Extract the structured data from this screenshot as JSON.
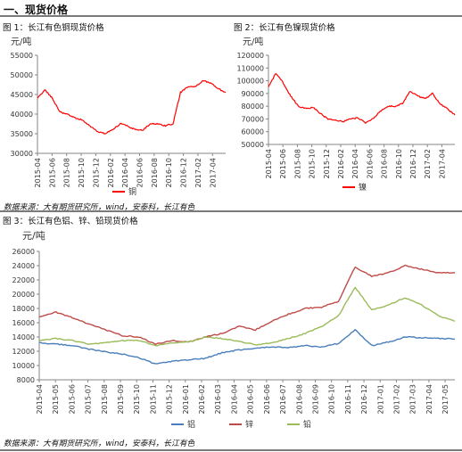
{
  "section_title": "一、现货价格",
  "figure1_title": "图 1：长江有色铜现货价格",
  "figure2_title": "图 2：长江有色镍现货价格",
  "figure3_title": "图 3：长江有色铝、锌、铅现货价格",
  "source1": "数据来源：大有期货研究所，wind，安泰科，长江有色",
  "source2": "数据来源：大有期货研究所，wind，安泰科，长江有色",
  "colors": {
    "copper": "#ff0000",
    "nickel": "#ff0000",
    "aluminum": "#4a7ebb",
    "zinc": "#be4b48",
    "lead": "#9bbb59",
    "axis": "#868686",
    "divider": "#7a7a7a"
  },
  "chart_data": [
    {
      "type": "line",
      "title": "",
      "ylabel": "元/吨",
      "ylim": [
        30000,
        55000
      ],
      "y_ticks": [
        "55000",
        "50000",
        "45000",
        "40000",
        "35000",
        "30000"
      ],
      "x_ticks": [
        "2015-04",
        "2015-06",
        "2015-08",
        "2015-10",
        "2015-12",
        "2016-02",
        "2016-04",
        "2016-06",
        "2016-08",
        "2016-10",
        "2016-12",
        "2017-02",
        "2017-04"
      ],
      "series": [
        {
          "name": "铜",
          "color": "#ff0000",
          "x": [
            "2015-04",
            "2015-05",
            "2015-06",
            "2015-07",
            "2015-08",
            "2015-09",
            "2015-10",
            "2015-11",
            "2015-12",
            "2016-01",
            "2016-02",
            "2016-03",
            "2016-04",
            "2016-05",
            "2016-06",
            "2016-07",
            "2016-08",
            "2016-09",
            "2016-10",
            "2016-11",
            "2016-12",
            "2017-01",
            "2017-02",
            "2017-03",
            "2017-04",
            "2017-05"
          ],
          "values": [
            44000,
            46200,
            44000,
            40500,
            40000,
            39000,
            38500,
            37000,
            35500,
            35000,
            36000,
            37500,
            37000,
            36000,
            36000,
            37500,
            37500,
            37000,
            37500,
            45500,
            47000,
            47000,
            48500,
            48000,
            46500,
            45500
          ]
        }
      ]
    },
    {
      "type": "line",
      "title": "",
      "ylabel": "元/吨",
      "ylim": [
        50000,
        120000
      ],
      "y_ticks": [
        "120000",
        "110000",
        "100000",
        "90000",
        "80000",
        "70000",
        "60000",
        "50000"
      ],
      "x_ticks": [
        "2015-04",
        "2015-06",
        "2015-08",
        "2015-10",
        "2015-12",
        "2016-02",
        "2016-04",
        "2016-06",
        "2016-08",
        "2016-10",
        "2016-12",
        "2017-02",
        "2017-04"
      ],
      "series": [
        {
          "name": "镍",
          "color": "#ff0000",
          "x": [
            "2015-04",
            "2015-05",
            "2015-06",
            "2015-07",
            "2015-08",
            "2015-09",
            "2015-10",
            "2015-11",
            "2015-12",
            "2016-01",
            "2016-02",
            "2016-03",
            "2016-04",
            "2016-05",
            "2016-06",
            "2016-07",
            "2016-08",
            "2016-09",
            "2016-10",
            "2016-11",
            "2016-12",
            "2017-01",
            "2017-02",
            "2017-03",
            "2017-04",
            "2017-05"
          ],
          "values": [
            95000,
            106000,
            98000,
            88000,
            80000,
            78000,
            79000,
            74000,
            70000,
            69000,
            68000,
            70000,
            71000,
            67000,
            70000,
            76000,
            80000,
            80000,
            82000,
            92000,
            88000,
            86000,
            90000,
            82000,
            78000,
            73000
          ]
        }
      ]
    },
    {
      "type": "line",
      "title": "",
      "ylabel": "元/吨",
      "ylim": [
        8000,
        26000
      ],
      "y_ticks": [
        "26000",
        "24000",
        "22000",
        "20000",
        "18000",
        "16000",
        "14000",
        "12000",
        "10000",
        "8000"
      ],
      "x_ticks": [
        "2015-04",
        "2015-05",
        "2015-06",
        "2015-07",
        "2015-08",
        "2015-09",
        "2015-10",
        "2015-11",
        "2015-12",
        "2016-01",
        "2016-02",
        "2016-03",
        "2016-04",
        "2016-05",
        "2016-06",
        "2016-07",
        "2016-08",
        "2016-09",
        "2016-10",
        "2016-11",
        "2016-12",
        "2017-01",
        "2017-02",
        "2017-03",
        "2017-04",
        "2017-05"
      ],
      "series": [
        {
          "name": "铝",
          "color": "#4a7ebb",
          "values": [
            13200,
            13000,
            12800,
            12300,
            11900,
            11600,
            11100,
            10200,
            10600,
            10800,
            11000,
            11800,
            12200,
            12400,
            12600,
            12500,
            12800,
            12600,
            13100,
            15000,
            12800,
            13300,
            14000,
            13900,
            13800,
            13700
          ]
        },
        {
          "name": "锌",
          "color": "#be4b48",
          "values": [
            16800,
            17500,
            16700,
            15800,
            15000,
            14200,
            14000,
            13000,
            13500,
            13300,
            14000,
            14500,
            15500,
            15000,
            16200,
            17200,
            18000,
            18200,
            19000,
            23800,
            22500,
            23000,
            24000,
            23500,
            23000,
            23000
          ]
        },
        {
          "name": "铅",
          "color": "#9bbb59",
          "values": [
            13500,
            13800,
            13500,
            13000,
            13200,
            13500,
            13500,
            12800,
            13200,
            13300,
            14000,
            13800,
            13400,
            12900,
            13200,
            13800,
            14500,
            15500,
            17000,
            21000,
            17800,
            18500,
            19500,
            18500,
            17000,
            16200
          ]
        }
      ]
    }
  ]
}
